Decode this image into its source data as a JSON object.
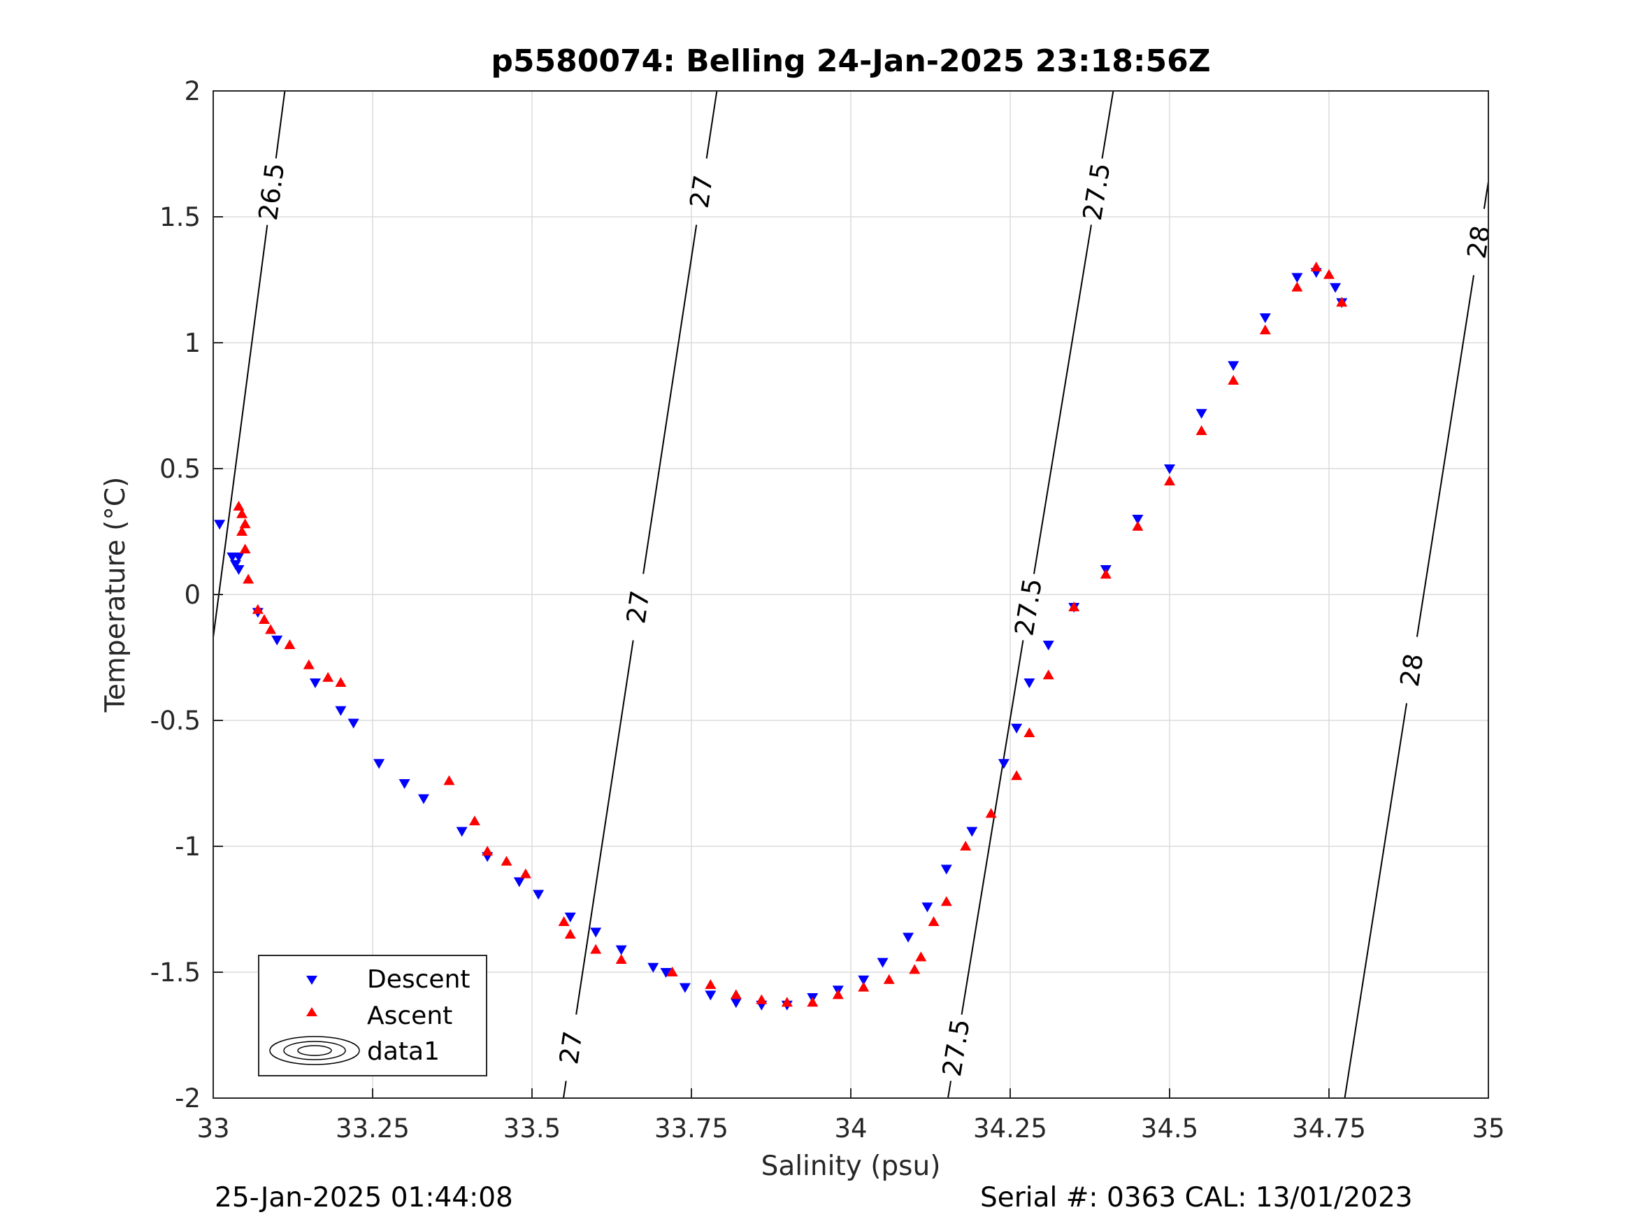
{
  "chart_data": {
    "type": "scatter",
    "title": "p5580074: Belling 24-Jan-2025 23:18:56Z",
    "xlabel": "Salinity (psu)",
    "ylabel": "Temperature (°C)",
    "xlim": [
      33,
      35
    ],
    "ylim": [
      -2,
      2
    ],
    "x_ticks": [
      33,
      33.25,
      33.5,
      33.75,
      34,
      34.25,
      34.5,
      34.75,
      35
    ],
    "x_tick_labels": [
      "33",
      "33.25",
      "33.5",
      "33.75",
      "34",
      "34.25",
      "34.5",
      "34.75",
      "35"
    ],
    "y_ticks": [
      2,
      1.5,
      1,
      0.5,
      0,
      -0.5,
      -1,
      -1.5,
      -2
    ],
    "y_tick_labels": [
      "2",
      "1.5",
      "1",
      "0.5",
      "0",
      "-0.5",
      "-1",
      "-1.5",
      "-2"
    ],
    "grid": true,
    "legend_position": "bottom-left",
    "legend": [
      "Descent",
      "Ascent",
      "data1"
    ],
    "colors": {
      "descent": "#0000ff",
      "ascent": "#ff0000",
      "contour": "#000000",
      "grid": "#dcdcdc"
    },
    "series": [
      {
        "name": "Descent",
        "marker": "triangle-down",
        "x": [
          33.01,
          33.03,
          33.035,
          33.04,
          33.04,
          33.07,
          33.1,
          33.16,
          33.2,
          33.22,
          33.26,
          33.3,
          33.33,
          33.39,
          33.43,
          33.48,
          33.51,
          33.56,
          33.6,
          33.64,
          33.69,
          33.71,
          33.74,
          33.78,
          33.82,
          33.86,
          33.9,
          33.94,
          33.98,
          34.02,
          34.05,
          34.09,
          34.12,
          34.15,
          34.19,
          34.24,
          34.26,
          34.28,
          34.31,
          34.35,
          34.4,
          34.45,
          34.5,
          34.55,
          34.6,
          34.65,
          34.7,
          34.73,
          34.76,
          34.77
        ],
        "y": [
          0.28,
          0.15,
          0.12,
          0.1,
          0.15,
          -0.07,
          -0.18,
          -0.35,
          -0.46,
          -0.51,
          -0.67,
          -0.75,
          -0.81,
          -0.94,
          -1.04,
          -1.14,
          -1.19,
          -1.28,
          -1.34,
          -1.41,
          -1.48,
          -1.5,
          -1.56,
          -1.59,
          -1.62,
          -1.63,
          -1.63,
          -1.6,
          -1.57,
          -1.53,
          -1.46,
          -1.36,
          -1.24,
          -1.09,
          -0.94,
          -0.67,
          -0.53,
          -0.35,
          -0.2,
          -0.05,
          0.1,
          0.3,
          0.5,
          0.72,
          0.91,
          1.1,
          1.26,
          1.28,
          1.22,
          1.16
        ]
      },
      {
        "name": "Ascent",
        "marker": "triangle-up",
        "x": [
          33.04,
          33.045,
          33.05,
          33.045,
          33.05,
          33.055,
          33.07,
          33.08,
          33.09,
          33.12,
          33.15,
          33.18,
          33.2,
          33.37,
          33.41,
          33.43,
          33.46,
          33.49,
          33.55,
          33.56,
          33.6,
          33.64,
          33.72,
          33.78,
          33.82,
          33.86,
          33.9,
          33.94,
          33.98,
          34.02,
          34.06,
          34.1,
          34.11,
          34.13,
          34.15,
          34.18,
          34.22,
          34.26,
          34.28,
          34.31,
          34.35,
          34.4,
          34.45,
          34.5,
          34.55,
          34.6,
          34.65,
          34.7,
          34.73,
          34.75,
          34.77
        ],
        "y": [
          0.35,
          0.32,
          0.28,
          0.25,
          0.18,
          0.06,
          -0.06,
          -0.1,
          -0.14,
          -0.2,
          -0.28,
          -0.33,
          -0.35,
          -0.74,
          -0.9,
          -1.02,
          -1.06,
          -1.11,
          -1.3,
          -1.35,
          -1.41,
          -1.45,
          -1.5,
          -1.55,
          -1.59,
          -1.61,
          -1.62,
          -1.62,
          -1.59,
          -1.56,
          -1.53,
          -1.49,
          -1.44,
          -1.3,
          -1.22,
          -1.0,
          -0.87,
          -0.72,
          -0.55,
          -0.32,
          -0.05,
          0.08,
          0.27,
          0.45,
          0.65,
          0.85,
          1.05,
          1.22,
          1.3,
          1.27,
          1.16
        ]
      }
    ],
    "contours": [
      {
        "level": "26.5",
        "x": [
          33.0,
          33.1123
        ],
        "y": [
          -0.17,
          2.0
        ],
        "label_y": 1.6
      },
      {
        "level": "27",
        "x": [
          33.5493,
          33.7899
        ],
        "y": [
          -2.0,
          2.0
        ],
        "label_y": [
          -1.8,
          -0.05,
          1.6
        ]
      },
      {
        "level": "27.5",
        "x": [
          34.1524,
          34.4116
        ],
        "y": [
          -2.0,
          2.0
        ],
        "label_y": [
          -1.8,
          -0.05,
          1.6
        ]
      },
      {
        "level": "28",
        "x": [
          34.7747,
          35.0
        ],
        "y": [
          -2.0,
          1.64
        ],
        "label_y": [
          -0.3,
          1.4
        ]
      }
    ]
  },
  "footer": {
    "timestamp": "25-Jan-2025 01:44:08",
    "serial": "Serial #: 0363  CAL: 13/01/2023"
  }
}
